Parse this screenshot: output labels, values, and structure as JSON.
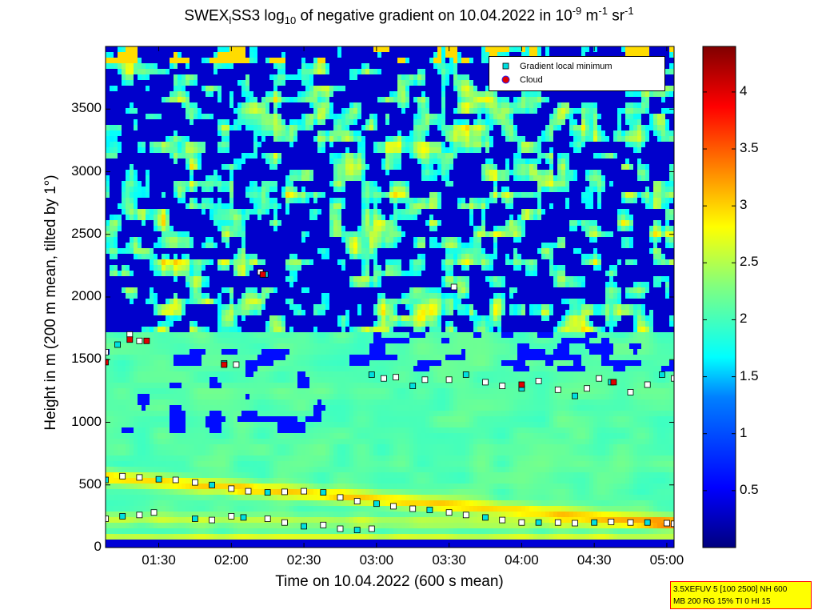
{
  "title": {
    "part1": "SWEX",
    "sub1": "l",
    "part2": "SS3 log",
    "sub2": "10",
    "part3": " of negative gradient on 10.04.2022 in 10",
    "sup1": "-9",
    "part4": " m",
    "sup2": "-1",
    "part5": " sr",
    "sup3": "-1"
  },
  "info_box": {
    "line1": "3.5XEFUV 5 [100 2500] NH 600",
    "line2": "MB 200 RG 15% TI 0 HI 15"
  },
  "colors": {
    "colormap": [
      "#00008f",
      "#0000ff",
      "#0080ff",
      "#00ffff",
      "#80ff80",
      "#ffff00",
      "#ff8000",
      "#ff0000",
      "#800000"
    ],
    "min_marker": "#00e0e0",
    "cloud_marker": "#e00000"
  },
  "chart_data": {
    "type": "heatmap",
    "title": "SWEX_l SS3 log10 of negative gradient on 10.04.2022 in 10^-9 m^-1 sr^-1",
    "xlabel": "Time on 10.04.2022 (600 s mean)",
    "ylabel": "Height in m (200 m mean, tilted by 1°)",
    "x_ticks": [
      "01:30",
      "02:00",
      "02:30",
      "03:00",
      "03:30",
      "04:00",
      "04:30",
      "05:00"
    ],
    "y_ticks": [
      "0",
      "500",
      "1000",
      "1500",
      "2000",
      "2500",
      "3000",
      "3500"
    ],
    "xlim": [
      "01:08",
      "05:03"
    ],
    "ylim": [
      0,
      4000
    ],
    "colorbar": {
      "range": [
        0,
        4.4
      ],
      "ticks": [
        "0.5",
        "1",
        "1.5",
        "2",
        "2.5",
        "3",
        "3.5",
        "4"
      ]
    },
    "legend": {
      "position": "top-right",
      "entries": [
        "Gradient local minimum",
        "Cloud"
      ]
    },
    "series": [
      {
        "name": "Gradient local minimum",
        "points": [
          [
            "01:08",
            540
          ],
          [
            "01:15",
            570
          ],
          [
            "01:22",
            560
          ],
          [
            "01:30",
            545
          ],
          [
            "01:37",
            540
          ],
          [
            "01:45",
            520
          ],
          [
            "01:52",
            500
          ],
          [
            "02:00",
            470
          ],
          [
            "02:07",
            450
          ],
          [
            "02:15",
            440
          ],
          [
            "02:22",
            445
          ],
          [
            "02:30",
            450
          ],
          [
            "02:38",
            440
          ],
          [
            "02:45",
            400
          ],
          [
            "02:52",
            370
          ],
          [
            "03:00",
            350
          ],
          [
            "03:07",
            330
          ],
          [
            "03:15",
            310
          ],
          [
            "03:22",
            300
          ],
          [
            "03:30",
            280
          ],
          [
            "03:37",
            260
          ],
          [
            "03:45",
            240
          ],
          [
            "03:52",
            220
          ],
          [
            "04:00",
            200
          ],
          [
            "04:07",
            200
          ],
          [
            "04:15",
            200
          ],
          [
            "04:22",
            195
          ],
          [
            "04:30",
            200
          ],
          [
            "04:37",
            205
          ],
          [
            "04:45",
            200
          ],
          [
            "04:52",
            200
          ],
          [
            "05:00",
            195
          ],
          [
            "01:08",
            230
          ],
          [
            "01:15",
            250
          ],
          [
            "01:22",
            260
          ],
          [
            "01:28",
            280
          ],
          [
            "01:45",
            230
          ],
          [
            "01:52",
            220
          ],
          [
            "02:00",
            250
          ],
          [
            "02:05",
            240
          ],
          [
            "02:15",
            230
          ],
          [
            "02:22",
            200
          ],
          [
            "02:30",
            170
          ],
          [
            "02:38",
            180
          ],
          [
            "02:45",
            150
          ],
          [
            "02:52",
            140
          ],
          [
            "02:58",
            150
          ],
          [
            "05:03",
            190
          ],
          [
            "02:58",
            1380
          ],
          [
            "03:03",
            1350
          ],
          [
            "03:08",
            1360
          ],
          [
            "03:15",
            1290
          ],
          [
            "03:20",
            1340
          ],
          [
            "03:30",
            1340
          ],
          [
            "03:37",
            1380
          ],
          [
            "03:45",
            1320
          ],
          [
            "03:52",
            1290
          ],
          [
            "04:00",
            1270
          ],
          [
            "04:07",
            1330
          ],
          [
            "04:15",
            1260
          ],
          [
            "04:22",
            1210
          ],
          [
            "04:27",
            1270
          ],
          [
            "04:32",
            1350
          ],
          [
            "04:37",
            1320
          ],
          [
            "04:45",
            1240
          ],
          [
            "04:52",
            1300
          ],
          [
            "04:58",
            1380
          ],
          [
            "05:03",
            1350
          ],
          [
            "01:08",
            1560
          ],
          [
            "01:13",
            1620
          ],
          [
            "01:18",
            1700
          ],
          [
            "01:22",
            1650
          ],
          [
            "01:57",
            1470
          ],
          [
            "02:02",
            1460
          ],
          [
            "02:12",
            2200
          ],
          [
            "02:14",
            2180
          ],
          [
            "03:32",
            2080
          ]
        ]
      },
      {
        "name": "Cloud",
        "points": [
          [
            "01:08",
            1480
          ],
          [
            "01:18",
            1660
          ],
          [
            "01:25",
            1650
          ],
          [
            "01:57",
            1460
          ],
          [
            "02:13",
            2180
          ],
          [
            "04:00",
            1300
          ],
          [
            "04:38",
            1320
          ]
        ]
      }
    ]
  }
}
